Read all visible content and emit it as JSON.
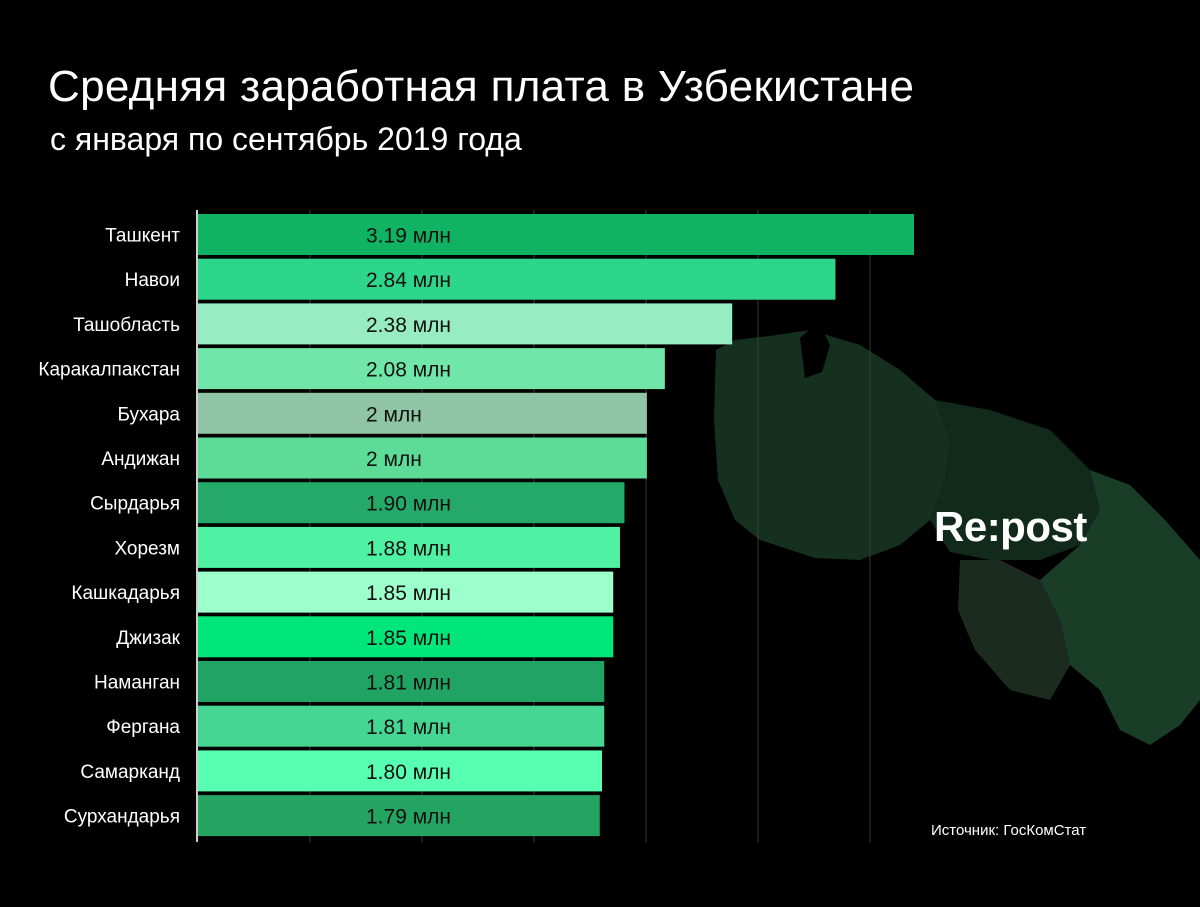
{
  "title": "Средняя заработная плата в Узбекистане",
  "subtitle": "с января по сентябрь 2019 года",
  "brand": "Re:post",
  "source": "Источник: ГосКомСтат",
  "chart_data": {
    "type": "bar",
    "orientation": "horizontal",
    "categories": [
      "Ташкент",
      "Навои",
      "Ташобласть",
      "Каракалпакстан",
      "Бухара",
      "Андижан",
      "Сырдарья",
      "Хорезм",
      "Кашкадарья",
      "Джизак",
      "Наманган",
      "Фергана",
      "Самарканд",
      "Сурхандарья"
    ],
    "values": [
      3.19,
      2.84,
      2.38,
      2.08,
      2.0,
      2.0,
      1.9,
      1.88,
      1.85,
      1.85,
      1.81,
      1.81,
      1.8,
      1.79
    ],
    "data_labels": [
      "3.19 млн",
      "2.84 млн",
      "2.38 млн",
      "2.08 млн",
      "2 млн",
      "2 млн",
      "1.90 млн",
      "1.88 млн",
      "1.85 млн",
      "1.85 млн",
      "1.81 млн",
      "1.81 млн",
      "1.80 млн",
      "1.79 млн"
    ],
    "colors": [
      "#10b362",
      "#2ed68b",
      "#98ecc2",
      "#70e7a8",
      "#8fc4a4",
      "#5ddc98",
      "#25a968",
      "#4ff2a3",
      "#9cffcc",
      "#00e67b",
      "#21a364",
      "#45d693",
      "#59ffb0",
      "#23a561"
    ],
    "xlim": [
      0,
      3.19
    ],
    "grid": true,
    "title": "Средняя заработная плата в Узбекистане",
    "subtitle": "с января по сентябрь 2019 года"
  }
}
